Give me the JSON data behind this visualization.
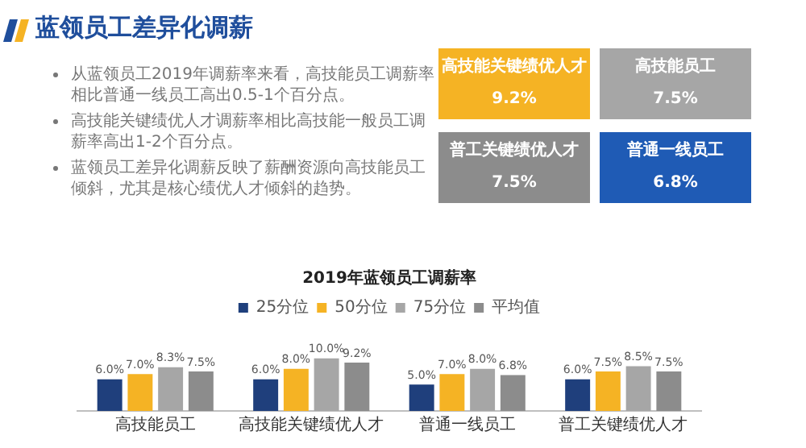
{
  "chart_data": [
    {
      "type": "other",
      "title": "蓝领员工差异化调薪",
      "annotations": [
        "从蓝领员工2019年调薪率来看，高技能员工调薪率相比普通一线员工高出0.5-1个百分点。",
        "高技能关键绩优人才调薪率相比高技能一般员工调薪率高出1-2个百分点。",
        "蓝领员工差异化调薪反映了薪酬资源向高技能员工倾斜，尤其是核心绩优人才倾斜的趋势。"
      ],
      "categories": [
        "高技能关键绩优人才",
        "高技能员工",
        "普工关键绩优人才",
        "普通一线员工"
      ],
      "value_labels": [
        "9.2%",
        "7.5%",
        "7.5%",
        "6.8%"
      ],
      "colors": [
        "#f5b324",
        "#a6a6a6",
        "#8c8c8c",
        "#1f5bb5"
      ]
    },
    {
      "type": "bar",
      "title": "2019年蓝领员工调薪率",
      "categories": [
        "高技能员工",
        "高技能关键绩优人才",
        "普通一线员工",
        "普工关键绩优人才"
      ],
      "series": [
        {
          "name": "25分位",
          "color": "#1f3f7c",
          "values": [
            6.0,
            6.0,
            5.0,
            6.0
          ],
          "value_labels": [
            "6.0%",
            "6.0%",
            "5.0%",
            "6.0%"
          ]
        },
        {
          "name": "50分位",
          "color": "#f5b324",
          "values": [
            7.0,
            8.0,
            7.0,
            7.5
          ],
          "value_labels": [
            "7.0%",
            "8.0%",
            "7.0%",
            "7.5%"
          ]
        },
        {
          "name": "75分位",
          "color": "#a6a6a6",
          "values": [
            8.3,
            10.0,
            8.0,
            8.5
          ],
          "value_labels": [
            "8.3%",
            "10.0%",
            "8.0%",
            "8.5%"
          ]
        },
        {
          "name": "平均值",
          "color": "#8c8c8c",
          "values": [
            7.5,
            9.2,
            6.8,
            7.5
          ],
          "value_labels": [
            "7.5%",
            "9.2%",
            "6.8%",
            "7.5%"
          ]
        }
      ],
      "legend": "top",
      "grid": false
    }
  ]
}
